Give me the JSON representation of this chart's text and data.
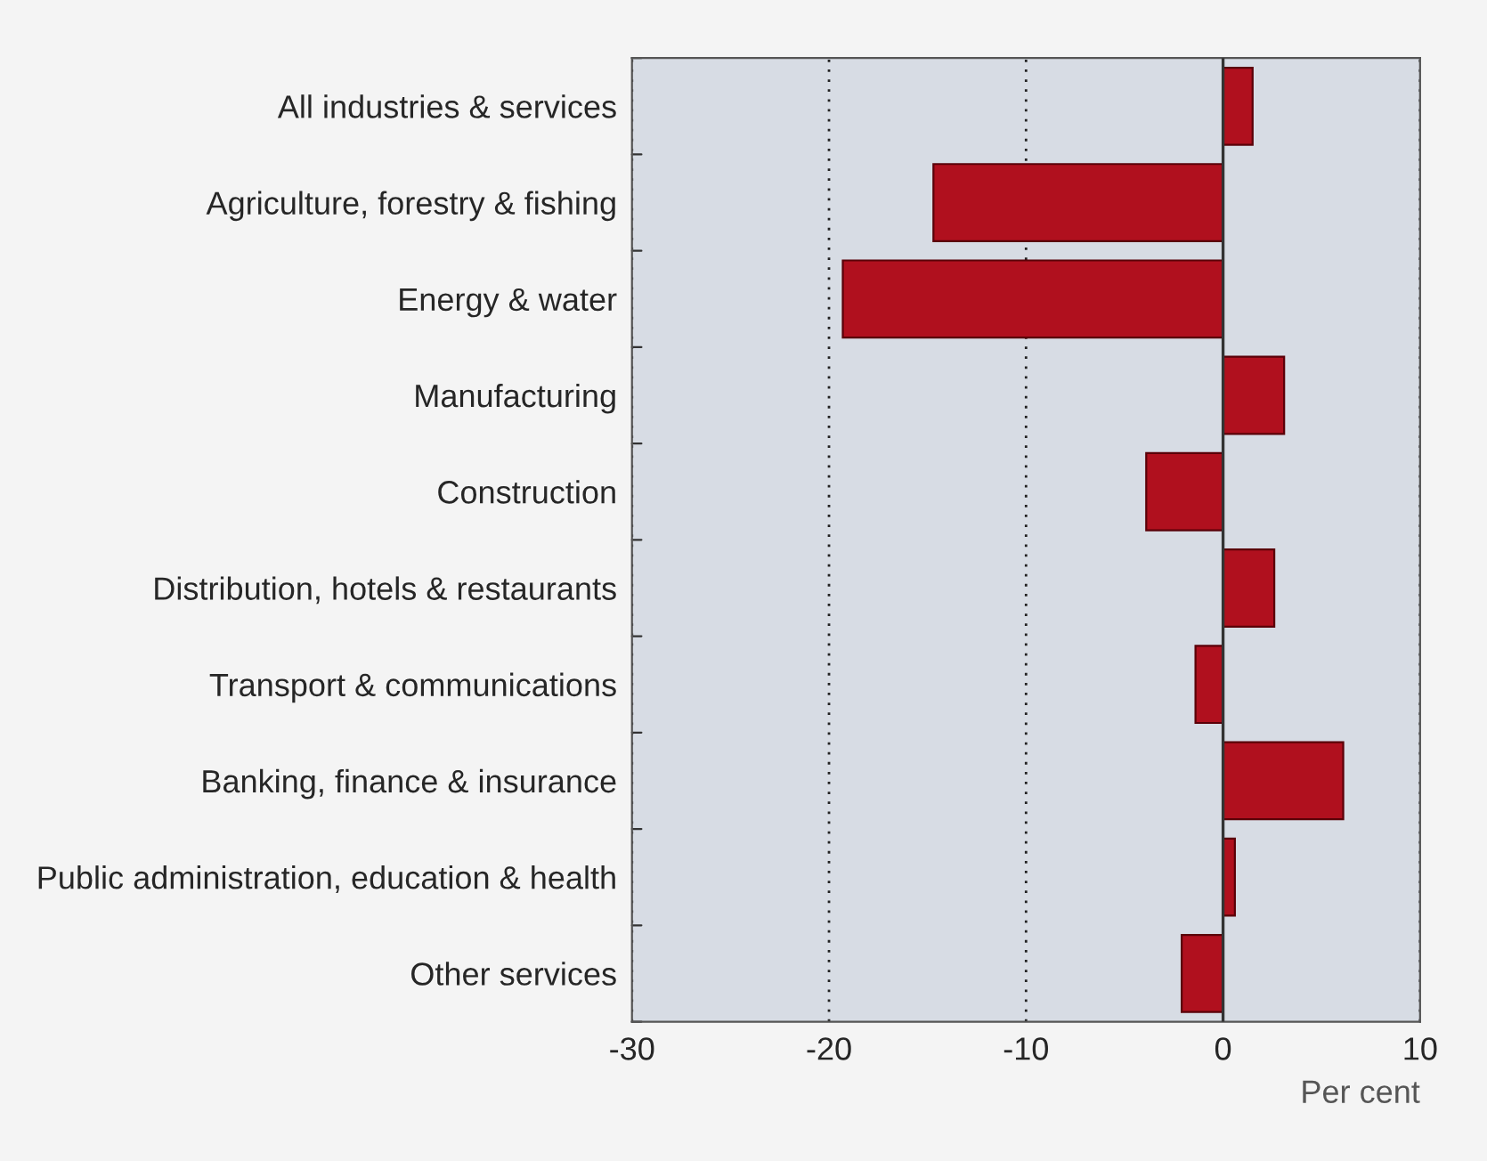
{
  "chart_data": {
    "type": "bar",
    "orientation": "horizontal",
    "xlabel": "Per cent",
    "categories": [
      "All industries & services",
      "Agriculture, forestry & fishing",
      "Energy & water",
      "Manufacturing",
      "Construction",
      "Distribution, hotels & restaurants",
      "Transport & communications",
      "Banking, finance & insurance",
      "Public administration, education & health",
      "Other services"
    ],
    "values": [
      1.5,
      -14.7,
      -19.3,
      3.1,
      -3.9,
      2.6,
      -1.4,
      6.1,
      0.6,
      -2.1
    ],
    "color": "#b0101e",
    "xlim": [
      -30,
      10
    ],
    "xticks": [
      -30,
      -20,
      -10,
      0,
      10
    ],
    "grid": "x",
    "ref_lines": [
      {
        "axis": "x",
        "value": 0,
        "color": "#333333"
      }
    ]
  }
}
